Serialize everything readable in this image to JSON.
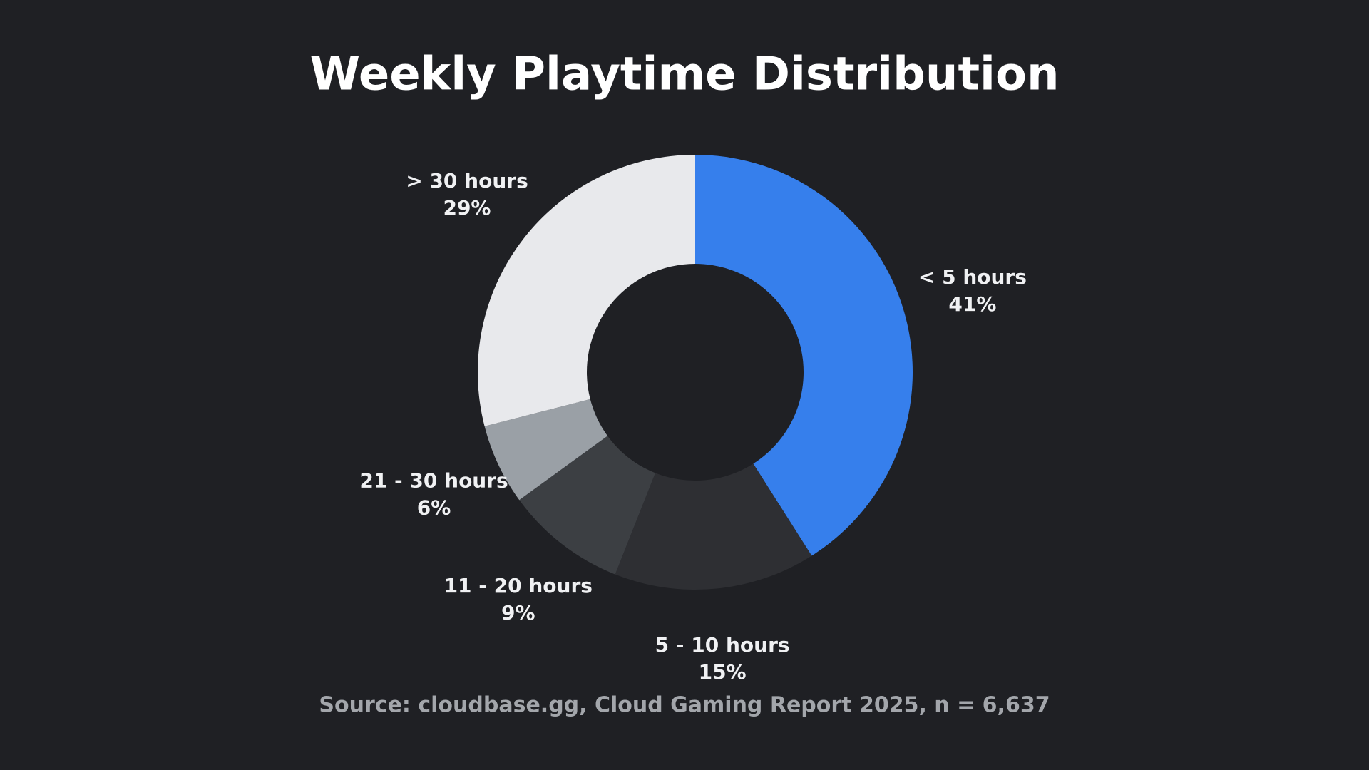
{
  "chart_data": {
    "type": "donut",
    "title": "Weekly Playtime Distribution",
    "categories": [
      "< 5 hours",
      "5 - 10 hours",
      "11 - 20 hours",
      "21 - 30 hours",
      "> 30 hours"
    ],
    "values": [
      41,
      15,
      9,
      6,
      29
    ],
    "value_labels": [
      "41%",
      "15%",
      "9%",
      "6%",
      "29%"
    ],
    "colors": [
      "#367fec",
      "#2e2f33",
      "#3c3f43",
      "#9aa0a6",
      "#e8e9ec"
    ],
    "source": "Source: cloudbase.gg, Cloud Gaming Report 2025, n = 6,637"
  }
}
